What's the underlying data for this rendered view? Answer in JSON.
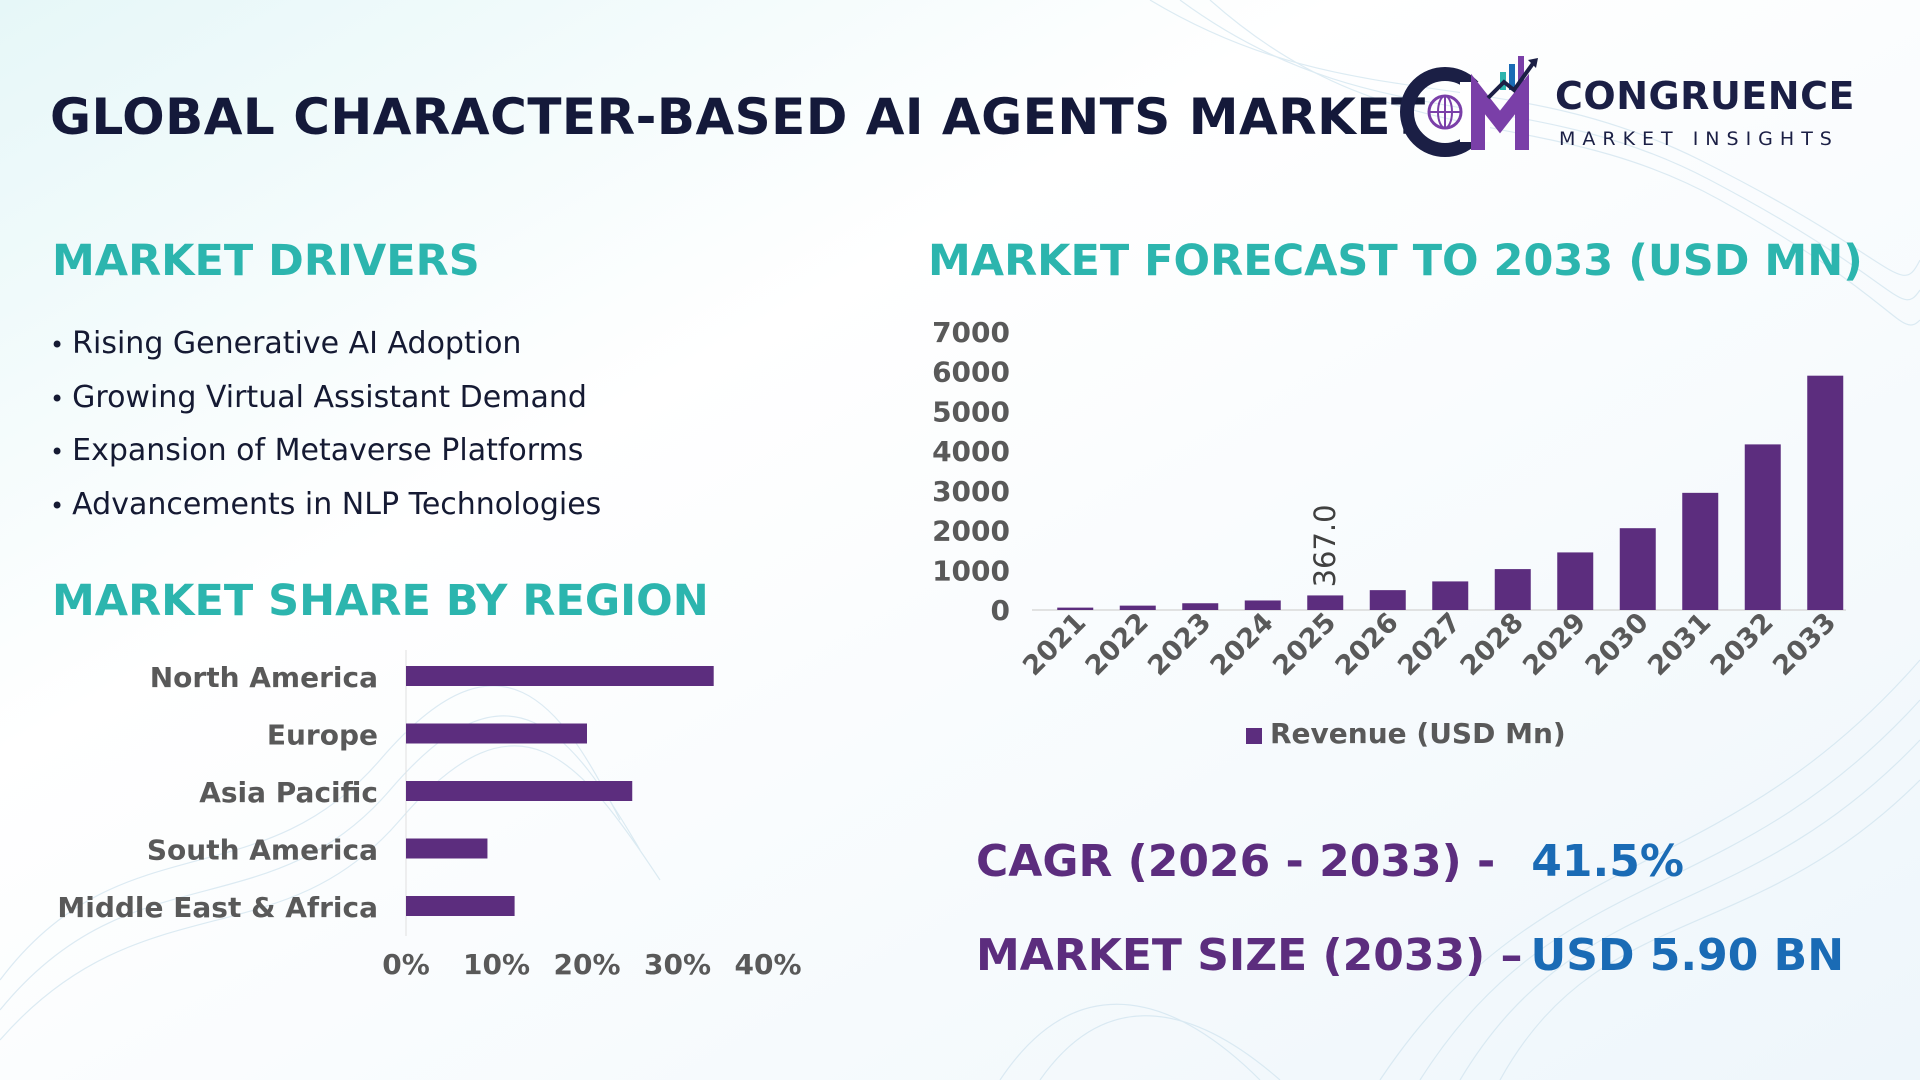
{
  "title": "GLOBAL CHARACTER-BASED AI AGENTS MARKET",
  "logo": {
    "name": "CONGRUENCE",
    "tagline": "MARKET INSIGHTS"
  },
  "drivers": {
    "heading": "MARKET DRIVERS",
    "items": [
      "Rising Generative AI Adoption",
      "Growing Virtual Assistant Demand",
      "Expansion of Metaverse Platforms",
      "Advancements in NLP Technologies"
    ]
  },
  "region": {
    "heading": "MARKET SHARE BY REGION"
  },
  "forecast": {
    "heading": "MARKET FORECAST TO 2033 (USD MN)"
  },
  "kpis": {
    "cagr_label": "CAGR (2026 - 2033) -",
    "cagr_value": "41.5%",
    "size_label": "MARKET SIZE (2033) –",
    "size_value": "USD 5.90 BN"
  },
  "colors": {
    "bar": "#5c2d7e",
    "accent": "#2cb5ae",
    "title": "#14193a",
    "kpi_value": "#1a6bb5"
  },
  "chart_data": [
    {
      "type": "bar",
      "orientation": "horizontal",
      "title": "MARKET SHARE BY REGION",
      "categories": [
        "North America",
        "Europe",
        "Asia Pacific",
        "South America",
        "Middle East & Africa"
      ],
      "values": [
        34,
        20,
        25,
        9,
        12
      ],
      "xlim": [
        0,
        40
      ],
      "xticks": [
        "0%",
        "10%",
        "20%",
        "30%",
        "40%"
      ],
      "grid": false
    },
    {
      "type": "bar",
      "title": "MARKET FORECAST TO 2033 (USD MN)",
      "categories": [
        "2021",
        "2022",
        "2023",
        "2024",
        "2025",
        "2026",
        "2027",
        "2028",
        "2029",
        "2030",
        "2031",
        "2032",
        "2033"
      ],
      "series": [
        {
          "name": "Revenue (USD Mn)",
          "values": [
            60,
            110,
            170,
            240,
            367.0,
            500,
            720,
            1030,
            1450,
            2060,
            2950,
            4170,
            5900
          ]
        }
      ],
      "ylim": [
        0,
        7000
      ],
      "yticks": [
        "0",
        "1000",
        "2000",
        "3000",
        "4000",
        "5000",
        "6000",
        "7000"
      ],
      "annotations": [
        {
          "category": "2025",
          "label": "367.0"
        }
      ],
      "legend": "bottom",
      "grid": false
    }
  ]
}
